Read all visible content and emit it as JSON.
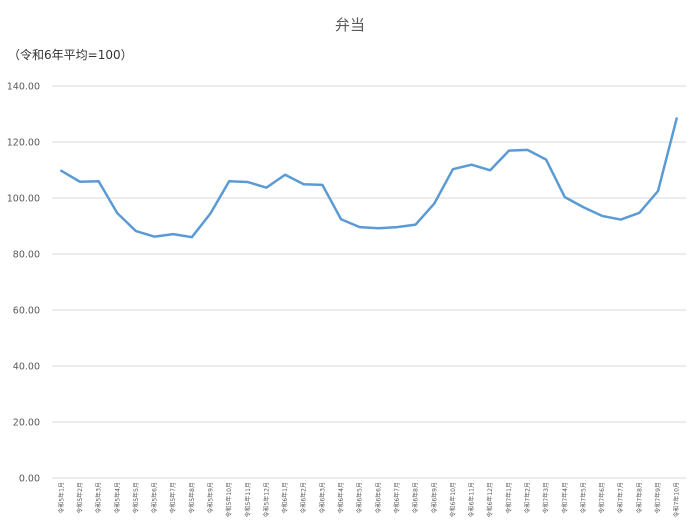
{
  "chart_data": {
    "type": "line",
    "title": "弁当",
    "unit_label": "（令和6年平均=100）",
    "ylim": [
      0,
      140
    ],
    "yticks": [
      "0.00",
      "20.00",
      "40.00",
      "60.00",
      "80.00",
      "100.00",
      "120.00",
      "140.00"
    ],
    "grid": true,
    "legend": "none",
    "line_color": "#5B9BD5",
    "gridline_color": "#D9D9D9",
    "categories": [
      "令和5年1月",
      "令和5年2月",
      "令和5年3月",
      "令和5年4月",
      "令和5年5月",
      "令和5年6月",
      "令和5年7月",
      "令和5年8月",
      "令和5年9月",
      "令和5年10月",
      "令和5年11月",
      "令和5年12月",
      "令和6年1月",
      "令和6年2月",
      "令和6年3月",
      "令和6年4月",
      "令和6年5月",
      "令和6年6月",
      "令和6年7月",
      "令和6年8月",
      "令和6年9月",
      "令和6年10月",
      "令和6年11月",
      "令和6年12月",
      "令和7年1月",
      "令和7年2月",
      "令和7年3月",
      "令和7年4月",
      "令和7年5月",
      "令和7年6月",
      "令和7年7月",
      "令和7年8月",
      "令和7年9月",
      "令和7年10月"
    ],
    "values": [
      109.7,
      105.8,
      106.0,
      94.6,
      88.2,
      86.2,
      87.1,
      86.0,
      94.5,
      106.0,
      105.7,
      103.7,
      108.3,
      104.9,
      104.7,
      92.4,
      89.6,
      89.2,
      89.6,
      90.5,
      98.0,
      110.3,
      111.9,
      109.9,
      116.9,
      117.2,
      113.7,
      100.3,
      96.7,
      93.6,
      92.3,
      94.7,
      102.5,
      128.4
    ]
  }
}
